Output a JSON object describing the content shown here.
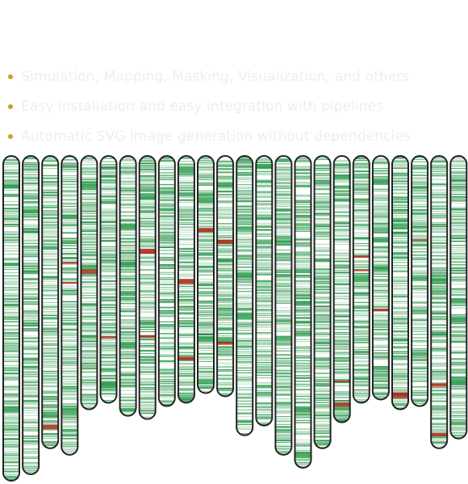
{
  "features": {
    "items": [
      {
        "text": "Simulation, Mapping, Masking, Visualization, and others"
      },
      {
        "text": "Easy installation and easy integration with pipelines"
      },
      {
        "text": "Automatic SVG image generation without dependencies"
      }
    ],
    "bullet_color": "#c9a227",
    "text_color": "#eeeeee"
  },
  "karyotype": {
    "chromosome_count": 24,
    "relative_lengths": [
      1.0,
      0.98,
      0.9,
      0.92,
      0.78,
      0.76,
      0.8,
      0.81,
      0.77,
      0.76,
      0.73,
      0.74,
      0.86,
      0.83,
      0.92,
      0.96,
      0.9,
      0.82,
      0.76,
      0.75,
      0.78,
      0.77,
      0.9,
      0.87
    ],
    "colors": {
      "outline": "#222222",
      "fill": "#ffffff",
      "band_green": "#2e9e4f",
      "band_dark_green": "#1f7a3a",
      "band_red": "#b22a1a"
    }
  }
}
